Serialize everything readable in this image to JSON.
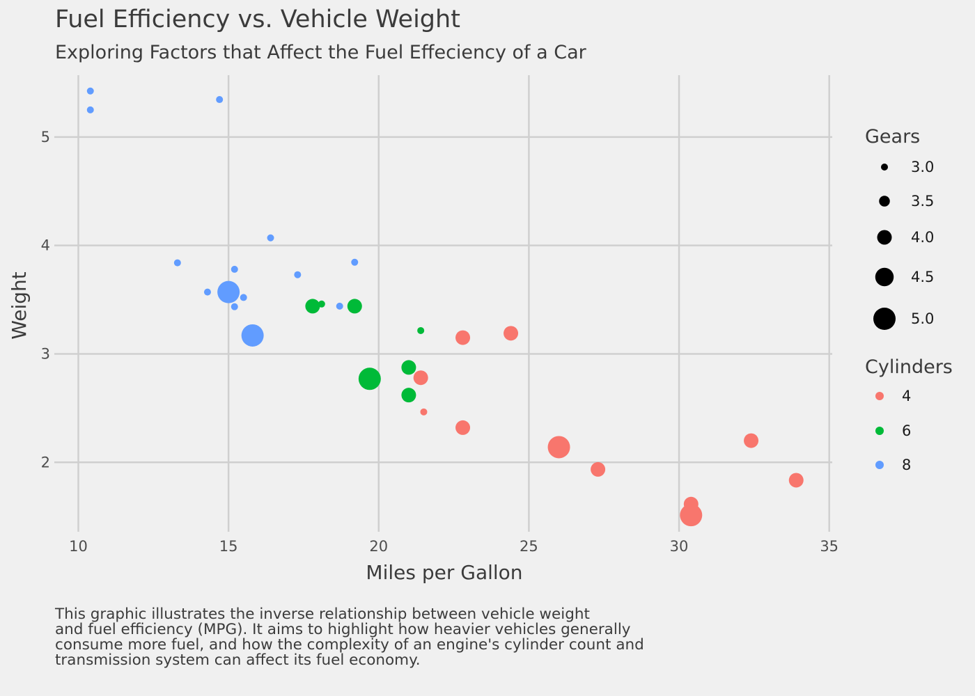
{
  "chart_data": {
    "type": "scatter",
    "title": "Fuel Efficiency vs. Vehicle Weight",
    "subtitle": "Exploring Factors that Affect the Fuel Effeciency of a Car",
    "xlabel": "Miles per Gallon",
    "ylabel": "Weight",
    "xlim": [
      9.2,
      35.1
    ],
    "ylim": [
      1.36,
      5.57
    ],
    "x_ticks": [
      10,
      15,
      20,
      25,
      30,
      35
    ],
    "y_ticks": [
      2,
      3,
      4,
      5
    ],
    "grid": true,
    "caption": [
      "This graphic illustrates the inverse relationship between vehicle weight",
      "and fuel efficiency (MPG). It aims to highlight how heavier vehicles generally",
      "consume more fuel, and how the complexity of an engine's cylinder count and",
      "transmission system can affect its fuel economy."
    ],
    "legend": {
      "position": "right",
      "size_title": "Gears",
      "size_entries": [
        {
          "label": "3.0",
          "value": 3.0
        },
        {
          "label": "3.5",
          "value": 3.5
        },
        {
          "label": "4.0",
          "value": 4.0
        },
        {
          "label": "4.5",
          "value": 4.5
        },
        {
          "label": "5.0",
          "value": 5.0
        }
      ],
      "color_title": "Cylinders",
      "color_entries": [
        {
          "label": "4",
          "color": "#f8766d"
        },
        {
          "label": "6",
          "color": "#00ba38"
        },
        {
          "label": "8",
          "color": "#619cff"
        }
      ]
    },
    "series": [
      {
        "name": "4",
        "color": "#f8766d",
        "points": [
          {
            "mpg": 22.8,
            "wt": 2.32,
            "gear": 4
          },
          {
            "mpg": 24.4,
            "wt": 3.19,
            "gear": 4
          },
          {
            "mpg": 22.8,
            "wt": 3.15,
            "gear": 4
          },
          {
            "mpg": 32.4,
            "wt": 2.2,
            "gear": 4
          },
          {
            "mpg": 30.4,
            "wt": 1.615,
            "gear": 4
          },
          {
            "mpg": 33.9,
            "wt": 1.835,
            "gear": 4
          },
          {
            "mpg": 21.5,
            "wt": 2.465,
            "gear": 3
          },
          {
            "mpg": 27.3,
            "wt": 1.935,
            "gear": 4
          },
          {
            "mpg": 26.0,
            "wt": 2.14,
            "gear": 5
          },
          {
            "mpg": 30.4,
            "wt": 1.513,
            "gear": 5
          },
          {
            "mpg": 21.4,
            "wt": 2.78,
            "gear": 4
          }
        ]
      },
      {
        "name": "6",
        "color": "#00ba38",
        "points": [
          {
            "mpg": 21.0,
            "wt": 2.62,
            "gear": 4
          },
          {
            "mpg": 21.0,
            "wt": 2.875,
            "gear": 4
          },
          {
            "mpg": 21.4,
            "wt": 3.215,
            "gear": 3
          },
          {
            "mpg": 18.1,
            "wt": 3.46,
            "gear": 3
          },
          {
            "mpg": 19.2,
            "wt": 3.44,
            "gear": 4
          },
          {
            "mpg": 17.8,
            "wt": 3.44,
            "gear": 4
          },
          {
            "mpg": 19.7,
            "wt": 2.77,
            "gear": 5
          }
        ]
      },
      {
        "name": "8",
        "color": "#619cff",
        "points": [
          {
            "mpg": 18.7,
            "wt": 3.44,
            "gear": 3
          },
          {
            "mpg": 14.3,
            "wt": 3.57,
            "gear": 3
          },
          {
            "mpg": 16.4,
            "wt": 4.07,
            "gear": 3
          },
          {
            "mpg": 17.3,
            "wt": 3.73,
            "gear": 3
          },
          {
            "mpg": 15.2,
            "wt": 3.78,
            "gear": 3
          },
          {
            "mpg": 10.4,
            "wt": 5.25,
            "gear": 3
          },
          {
            "mpg": 10.4,
            "wt": 5.424,
            "gear": 3
          },
          {
            "mpg": 14.7,
            "wt": 5.345,
            "gear": 3
          },
          {
            "mpg": 15.5,
            "wt": 3.52,
            "gear": 3
          },
          {
            "mpg": 15.2,
            "wt": 3.435,
            "gear": 3
          },
          {
            "mpg": 13.3,
            "wt": 3.84,
            "gear": 3
          },
          {
            "mpg": 19.2,
            "wt": 3.845,
            "gear": 3
          },
          {
            "mpg": 15.8,
            "wt": 3.17,
            "gear": 5
          },
          {
            "mpg": 15.0,
            "wt": 3.57,
            "gear": 5
          }
        ]
      }
    ]
  }
}
